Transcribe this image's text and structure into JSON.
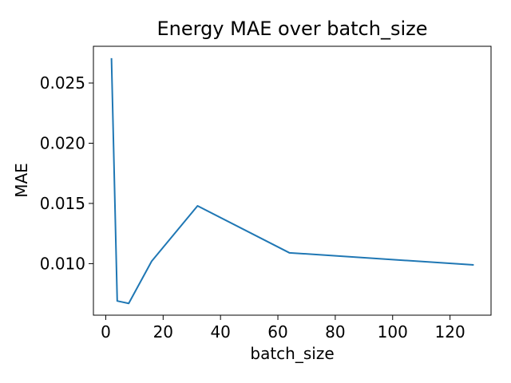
{
  "chart_data": {
    "type": "line",
    "title": "Energy MAE over batch_size",
    "xlabel": "batch_size",
    "ylabel": "MAE",
    "xlim": [
      -4.3,
      134.3
    ],
    "ylim": [
      0.00572,
      0.02805
    ],
    "xticks": [
      0,
      20,
      40,
      60,
      80,
      100,
      120
    ],
    "yticks": [
      0.01,
      0.015,
      0.02,
      0.025
    ],
    "xtick_labels": [
      "0",
      "20",
      "40",
      "60",
      "80",
      "100",
      "120"
    ],
    "ytick_labels": [
      "0.010",
      "0.015",
      "0.020",
      "0.025"
    ],
    "grid": false,
    "series": [
      {
        "color": "#1f77b4",
        "x": [
          2,
          4,
          8,
          16,
          32,
          64,
          128
        ],
        "y": [
          0.027,
          0.0069,
          0.0067,
          0.0102,
          0.0148,
          0.0109,
          0.0099
        ]
      }
    ]
  }
}
